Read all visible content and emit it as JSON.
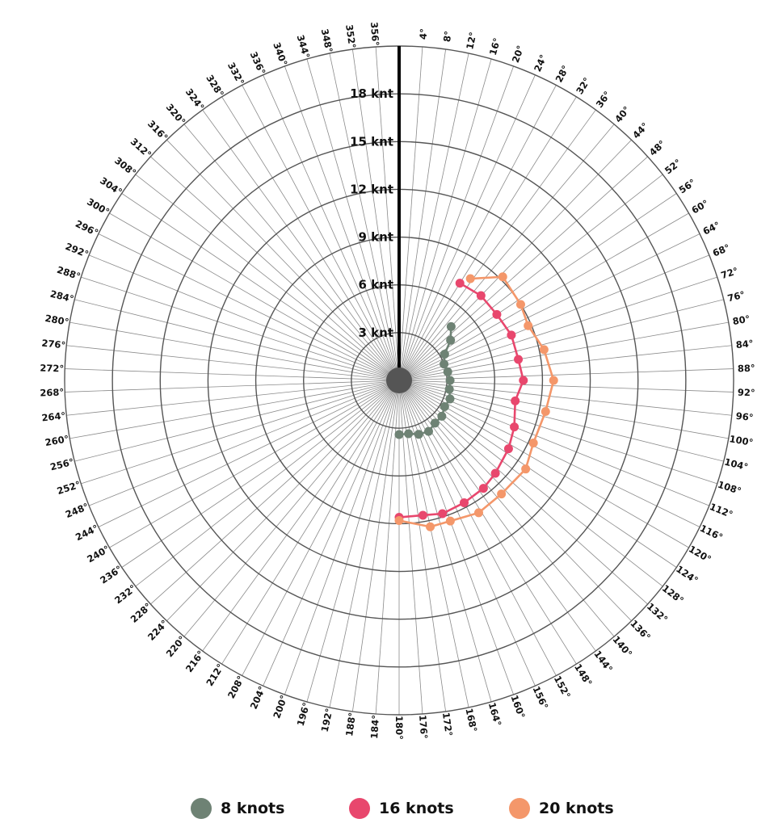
{
  "chart_data": {
    "type": "polar-line",
    "radial_axis": {
      "max": 21,
      "rings": [
        3,
        6,
        9,
        12,
        15,
        18,
        21
      ],
      "tick_labels": [
        "3 knt",
        "6 knt",
        "9 knt",
        "12 knt",
        "15 knt",
        "18 knt"
      ]
    },
    "angular_axis": {
      "step_degrees": 4,
      "labels": [
        "4°",
        "8°",
        "12°",
        "16°",
        "20°",
        "24°",
        "28°",
        "32°",
        "36°",
        "40°",
        "44°",
        "48°",
        "52°",
        "56°",
        "60°",
        "64°",
        "68°",
        "72°",
        "76°",
        "80°",
        "84°",
        "88°",
        "92°",
        "96°",
        "100°",
        "104°",
        "108°",
        "112°",
        "116°",
        "120°",
        "124°",
        "128°",
        "132°",
        "136°",
        "140°",
        "144°",
        "148°",
        "152°",
        "156°",
        "160°",
        "164°",
        "168°",
        "172°",
        "176°",
        "180°",
        "184°",
        "188°",
        "192°",
        "196°",
        "200°",
        "204°",
        "208°",
        "212°",
        "216°",
        "220°",
        "224°",
        "228°",
        "232°",
        "236°",
        "240°",
        "244°",
        "248°",
        "252°",
        "256°",
        "260°",
        "264°",
        "268°",
        "272°",
        "276°",
        "280°",
        "284°",
        "288°",
        "292°",
        "296°",
        "300°",
        "304°",
        "308°",
        "312°",
        "316°",
        "320°",
        "324°",
        "328°",
        "332°",
        "336°",
        "340°",
        "344°",
        "348°",
        "352°",
        "356°"
      ]
    },
    "series": [
      {
        "name": "8 knots",
        "color": "#6e8274",
        "points": [
          [
            44,
            4.7
          ],
          [
            52,
            4.1
          ],
          [
            60,
            3.3
          ],
          [
            70,
            3.0
          ],
          [
            80,
            3.1
          ],
          [
            90,
            3.2
          ],
          [
            100,
            3.2
          ],
          [
            110,
            3.4
          ],
          [
            120,
            3.3
          ],
          [
            130,
            3.5
          ],
          [
            140,
            3.5
          ],
          [
            150,
            3.7
          ],
          [
            160,
            3.6
          ],
          [
            170,
            3.4
          ],
          [
            180,
            3.4
          ]
        ]
      },
      {
        "name": "16 knots",
        "color": "#e8476d",
        "points": [
          [
            32,
            7.2
          ],
          [
            44,
            7.4
          ],
          [
            56,
            7.4
          ],
          [
            68,
            7.6
          ],
          [
            80,
            7.6
          ],
          [
            90,
            7.8
          ],
          [
            100,
            7.4
          ],
          [
            112,
            7.8
          ],
          [
            122,
            8.1
          ],
          [
            134,
            8.4
          ],
          [
            142,
            8.6
          ],
          [
            152,
            8.7
          ],
          [
            162,
            8.8
          ],
          [
            170,
            8.6
          ],
          [
            180,
            8.6
          ]
        ]
      },
      {
        "name": "20 knots",
        "color": "#f4976a",
        "points": [
          [
            35,
            7.8
          ],
          [
            45,
            9.2
          ],
          [
            58,
            9.0
          ],
          [
            67,
            8.8
          ],
          [
            78,
            9.3
          ],
          [
            90,
            9.7
          ],
          [
            102,
            9.4
          ],
          [
            115,
            9.3
          ],
          [
            125,
            9.7
          ],
          [
            138,
            9.6
          ],
          [
            149,
            9.7
          ],
          [
            160,
            9.4
          ],
          [
            168,
            9.4
          ],
          [
            180,
            8.8
          ]
        ]
      }
    ]
  },
  "legend": {
    "items": [
      {
        "label": "8 knots",
        "color": "#6e8274"
      },
      {
        "label": "16 knots",
        "color": "#e8476d"
      },
      {
        "label": "20 knots",
        "color": "#f4976a"
      }
    ]
  }
}
